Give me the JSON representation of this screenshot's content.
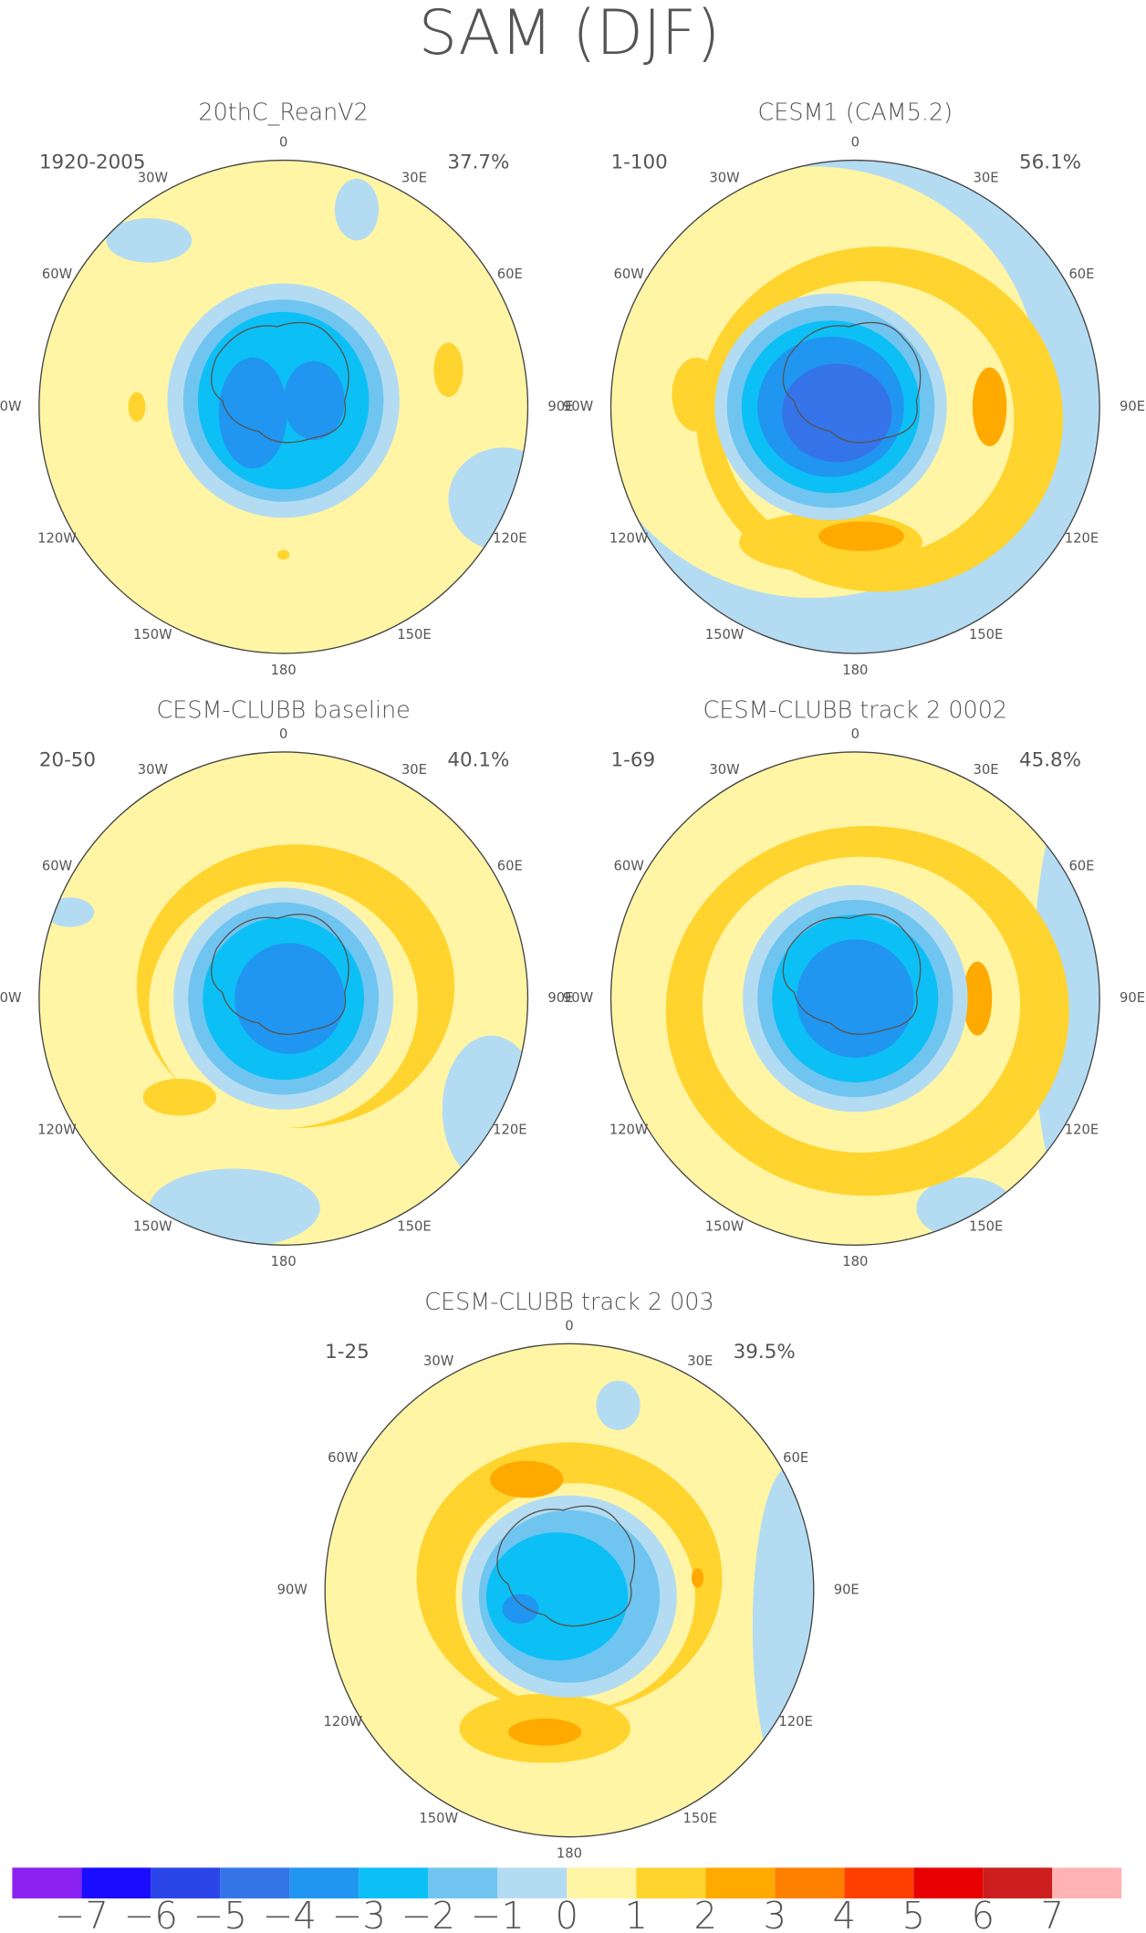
{
  "title": "SAM (DJF)",
  "longitude_labels": [
    "0",
    "30E",
    "60E",
    "90E",
    "120E",
    "150E",
    "180",
    "150W",
    "120W",
    "90W",
    "60W",
    "30W"
  ],
  "panels": [
    {
      "title": "20thC_ReanV2",
      "period": "1920-2005",
      "variance": "37.7%"
    },
    {
      "title": "CESM1 (CAM5.2)",
      "period": "1-100",
      "variance": "56.1%"
    },
    {
      "title": "CESM-CLUBB baseline",
      "period": "20-50",
      "variance": "40.1%"
    },
    {
      "title": "CESM-CLUBB track 2 0002",
      "period": "1-69",
      "variance": "45.8%"
    },
    {
      "title": "CESM-CLUBB track 2 003",
      "period": "1-25",
      "variance": "39.5%"
    }
  ],
  "colorbar": {
    "colors": [
      "#8b22f0",
      "#1a0dff",
      "#2a45e8",
      "#3574e8",
      "#2096f0",
      "#0cc0f5",
      "#6fc5f0",
      "#b3dcf2",
      "#fff5a5",
      "#ffd42e",
      "#ffaa00",
      "#ff8000",
      "#ff4000",
      "#e60000",
      "#cc1e1e",
      "#ffb3b3"
    ],
    "labels": [
      "−7",
      "−6",
      "−5",
      "−4",
      "−3",
      "−2",
      "−1",
      "0",
      "1",
      "2",
      "3",
      "4",
      "5",
      "6",
      "7"
    ]
  }
}
